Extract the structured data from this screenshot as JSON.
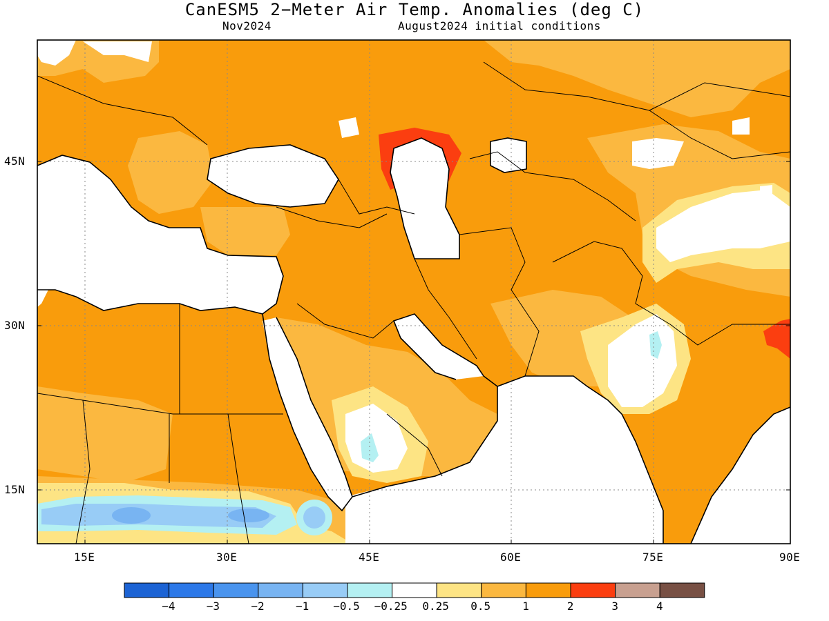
{
  "title": "CanESM5 2−Meter Air Temp. Anomalies (deg C)",
  "subtitle_left": "Nov2024",
  "subtitle_right": "August2024 initial conditions",
  "lat_ticks": [
    {
      "label": "45N",
      "value": 45
    },
    {
      "label": "30N",
      "value": 30
    },
    {
      "label": "15N",
      "value": 15
    }
  ],
  "lon_ticks": [
    {
      "label": "15E",
      "value": 15
    },
    {
      "label": "30E",
      "value": 30
    },
    {
      "label": "45E",
      "value": 45
    },
    {
      "label": "60E",
      "value": 60
    },
    {
      "label": "75E",
      "value": 75
    },
    {
      "label": "90E",
      "value": 90
    }
  ],
  "colorbar": {
    "colors": [
      "#1c63d4",
      "#2c78e8",
      "#4a94ee",
      "#78b4f2",
      "#98ccf6",
      "#b4f0f2",
      "#ffffff",
      "#fde484",
      "#fbb840",
      "#f99c0c",
      "#fb3e10",
      "#c8a090",
      "#785044"
    ],
    "labels": [
      "−4",
      "−3",
      "−2",
      "−1",
      "−0.5",
      "−0.25",
      "0.25",
      "0.5",
      "1",
      "2",
      "3",
      "4"
    ]
  },
  "colors": {
    "white": "#ffffff",
    "light_yellow": "#fde484",
    "light_orange": "#fbb840",
    "orange": "#f99c0c",
    "red": "#fb3e10",
    "cyan": "#b4f0f2",
    "light_blue": "#98ccf6",
    "blue": "#78b4f2",
    "coast": "#000000",
    "grid": "#888888"
  }
}
